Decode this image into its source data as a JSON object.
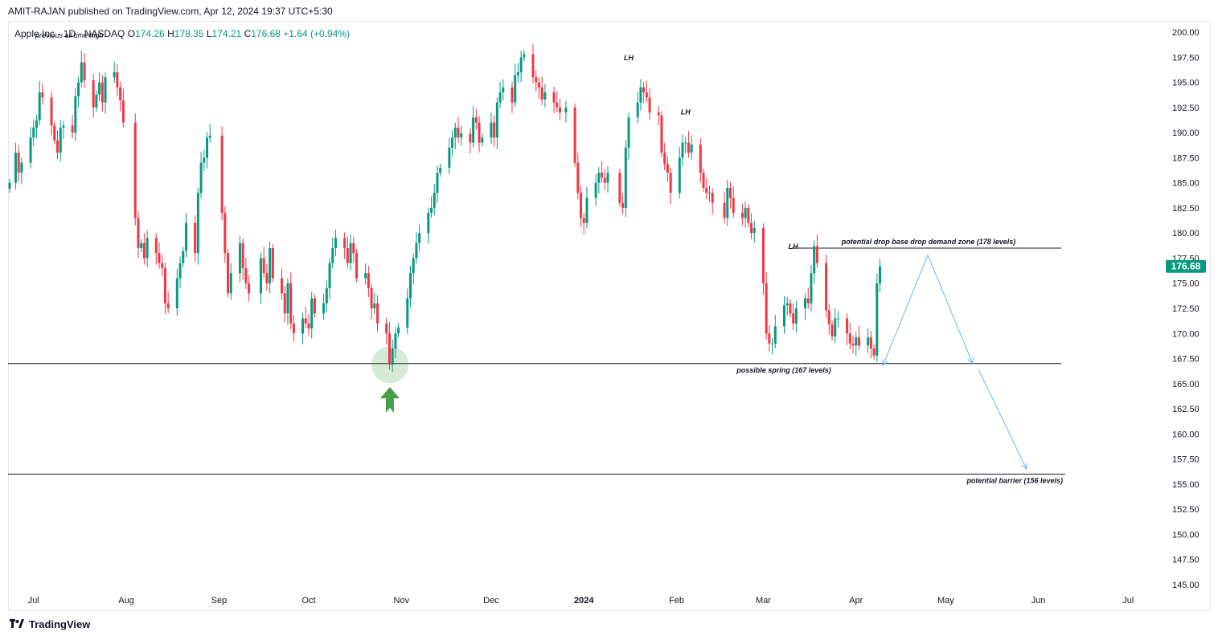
{
  "publisher": "AMIT-RAJAN published on TradingView.com, Apr 12, 2024 19:37 UTC+5:30",
  "legend": {
    "symbol": "Apple Inc · 1D · NASDAQ",
    "o_label": "O",
    "o": "174.26",
    "h_label": "H",
    "h": "178.35",
    "l_label": "L",
    "l": "174.21",
    "c_label": "C",
    "c": "176.68",
    "change": "+1.64 (+0.94%)",
    "overlay_note": "previous all time high"
  },
  "footer": {
    "brand": "TradingView"
  },
  "colors": {
    "up": "#089981",
    "down": "#f23645",
    "accent": "#089981",
    "arrow": "#64b5f6",
    "pointer": "#43a047"
  },
  "chart_data": {
    "type": "candlestick",
    "title": "Apple Inc · 1D · NASDAQ",
    "ylim": [
      143.5,
      201.5
    ],
    "y_ticks": [
      "200.00",
      "197.50",
      "195.00",
      "192.50",
      "190.00",
      "187.50",
      "185.00",
      "182.50",
      "180.00",
      "177.50",
      "175.00",
      "172.50",
      "170.00",
      "167.50",
      "165.00",
      "162.50",
      "160.00",
      "157.50",
      "155.00",
      "152.50",
      "150.00",
      "147.50",
      "145.00"
    ],
    "x_ticks": [
      {
        "label": "Jul",
        "day": 8
      },
      {
        "label": "Aug",
        "day": 39
      },
      {
        "label": "Sep",
        "day": 70
      },
      {
        "label": "Oct",
        "day": 100
      },
      {
        "label": "Nov",
        "day": 131
      },
      {
        "label": "Dec",
        "day": 161
      },
      {
        "label": "2024",
        "day": 192
      },
      {
        "label": "Feb",
        "day": 223
      },
      {
        "label": "Mar",
        "day": 252
      },
      {
        "label": "Apr",
        "day": 283
      },
      {
        "label": "May",
        "day": 313
      },
      {
        "label": "Jun",
        "day": 344
      },
      {
        "label": "Jul",
        "day": 374
      }
    ],
    "start_day": 0,
    "closes": [
      {
        "day": 0,
        "c": 185.0
      },
      {
        "day": 2,
        "c": 188.0
      },
      {
        "day": 3,
        "c": 186.0
      },
      {
        "day": 4,
        "c": 187.0
      },
      {
        "day": 7,
        "c": 189.5
      },
      {
        "day": 8,
        "c": 190.5
      },
      {
        "day": 9,
        "c": 191.2
      },
      {
        "day": 10,
        "c": 194.0
      },
      {
        "day": 11,
        "c": 193.5
      },
      {
        "day": 14,
        "c": 190.7
      },
      {
        "day": 15,
        "c": 189.2
      },
      {
        "day": 16,
        "c": 188.0
      },
      {
        "day": 17,
        "c": 190.5
      },
      {
        "day": 18,
        "c": 190.7
      },
      {
        "day": 21,
        "c": 190.0
      },
      {
        "day": 22,
        "c": 193.6
      },
      {
        "day": 23,
        "c": 195.0
      },
      {
        "day": 24,
        "c": 197.0
      },
      {
        "day": 25,
        "c": 195.2
      },
      {
        "day": 28,
        "c": 192.5
      },
      {
        "day": 29,
        "c": 193.8
      },
      {
        "day": 30,
        "c": 195.0
      },
      {
        "day": 31,
        "c": 193.0
      },
      {
        "day": 32,
        "c": 195.5
      },
      {
        "day": 35,
        "c": 196.0
      },
      {
        "day": 36,
        "c": 194.5
      },
      {
        "day": 37,
        "c": 193.2
      },
      {
        "day": 38,
        "c": 191.0
      },
      {
        "day": 42,
        "c": 181.5
      },
      {
        "day": 43,
        "c": 178.5
      },
      {
        "day": 44,
        "c": 179.0
      },
      {
        "day": 45,
        "c": 177.5
      },
      {
        "day": 46,
        "c": 179.5
      },
      {
        "day": 49,
        "c": 178.0
      },
      {
        "day": 50,
        "c": 177.0
      },
      {
        "day": 51,
        "c": 176.5
      },
      {
        "day": 52,
        "c": 173.0
      },
      {
        "day": 53,
        "c": 172.5
      },
      {
        "day": 56,
        "c": 175.5
      },
      {
        "day": 57,
        "c": 177.0
      },
      {
        "day": 58,
        "c": 178.2
      },
      {
        "day": 59,
        "c": 181.0
      },
      {
        "day": 62,
        "c": 178.0
      },
      {
        "day": 63,
        "c": 184.0
      },
      {
        "day": 64,
        "c": 187.0
      },
      {
        "day": 65,
        "c": 187.5
      },
      {
        "day": 66,
        "c": 189.5
      },
      {
        "day": 67,
        "c": 189.7
      },
      {
        "day": 71,
        "c": 182.0
      },
      {
        "day": 72,
        "c": 178.0
      },
      {
        "day": 73,
        "c": 174.0
      },
      {
        "day": 74,
        "c": 176.0
      },
      {
        "day": 77,
        "c": 179.0
      },
      {
        "day": 78,
        "c": 176.5
      },
      {
        "day": 79,
        "c": 175.0
      },
      {
        "day": 80,
        "c": 174.0
      },
      {
        "day": 84,
        "c": 177.5
      },
      {
        "day": 85,
        "c": 176.0
      },
      {
        "day": 86,
        "c": 175.0
      },
      {
        "day": 87,
        "c": 178.5
      },
      {
        "day": 88,
        "c": 175.5
      },
      {
        "day": 91,
        "c": 174.0
      },
      {
        "day": 92,
        "c": 172.0
      },
      {
        "day": 93,
        "c": 175.0
      },
      {
        "day": 94,
        "c": 171.0
      },
      {
        "day": 95,
        "c": 170.0
      },
      {
        "day": 98,
        "c": 171.5
      },
      {
        "day": 99,
        "c": 171.0
      },
      {
        "day": 100,
        "c": 170.5
      },
      {
        "day": 101,
        "c": 173.5
      },
      {
        "day": 102,
        "c": 172.0
      },
      {
        "day": 105,
        "c": 173.0
      },
      {
        "day": 106,
        "c": 174.5
      },
      {
        "day": 107,
        "c": 177.0
      },
      {
        "day": 108,
        "c": 178.5
      },
      {
        "day": 109,
        "c": 179.5
      },
      {
        "day": 112,
        "c": 178.5
      },
      {
        "day": 113,
        "c": 177.0
      },
      {
        "day": 114,
        "c": 179.0
      },
      {
        "day": 115,
        "c": 178.0
      },
      {
        "day": 116,
        "c": 175.5
      },
      {
        "day": 119,
        "c": 176.0
      },
      {
        "day": 120,
        "c": 174.5
      },
      {
        "day": 121,
        "c": 172.5
      },
      {
        "day": 122,
        "c": 173.0
      },
      {
        "day": 123,
        "c": 171.0
      },
      {
        "day": 126,
        "c": 170.0
      },
      {
        "day": 127,
        "c": 166.9
      },
      {
        "day": 128,
        "c": 168.5
      },
      {
        "day": 129,
        "c": 170.0
      },
      {
        "day": 130,
        "c": 170.6
      },
      {
        "day": 133,
        "c": 173.5
      },
      {
        "day": 134,
        "c": 176.0
      },
      {
        "day": 135,
        "c": 177.5
      },
      {
        "day": 136,
        "c": 179.0
      },
      {
        "day": 137,
        "c": 180.0
      },
      {
        "day": 140,
        "c": 182.0
      },
      {
        "day": 141,
        "c": 182.5
      },
      {
        "day": 142,
        "c": 184.0
      },
      {
        "day": 143,
        "c": 186.0
      },
      {
        "day": 144,
        "c": 186.5
      },
      {
        "day": 147,
        "c": 188.5
      },
      {
        "day": 148,
        "c": 189.5
      },
      {
        "day": 149,
        "c": 190.5
      },
      {
        "day": 150,
        "c": 189.5
      },
      {
        "day": 151,
        "c": 189.9
      },
      {
        "day": 154,
        "c": 189.0
      },
      {
        "day": 155,
        "c": 191.5
      },
      {
        "day": 156,
        "c": 191.0
      },
      {
        "day": 157,
        "c": 189.0
      },
      {
        "day": 158,
        "c": 189.5
      },
      {
        "day": 161,
        "c": 191.0
      },
      {
        "day": 162,
        "c": 189.5
      },
      {
        "day": 163,
        "c": 193.0
      },
      {
        "day": 164,
        "c": 194.0
      },
      {
        "day": 165,
        "c": 194.5
      },
      {
        "day": 168,
        "c": 193.0
      },
      {
        "day": 169,
        "c": 195.7
      },
      {
        "day": 170,
        "c": 196.0
      },
      {
        "day": 171,
        "c": 197.5
      },
      {
        "day": 172,
        "c": 197.8
      },
      {
        "day": 175,
        "c": 195.5
      },
      {
        "day": 176,
        "c": 195.0
      },
      {
        "day": 177,
        "c": 194.5
      },
      {
        "day": 178,
        "c": 193.3
      },
      {
        "day": 179,
        "c": 194.0
      },
      {
        "day": 182,
        "c": 193.0
      },
      {
        "day": 183,
        "c": 192.5
      },
      {
        "day": 184,
        "c": 192.0
      },
      {
        "day": 186,
        "c": 192.5
      },
      {
        "day": 189,
        "c": 187.0
      },
      {
        "day": 190,
        "c": 184.0
      },
      {
        "day": 191,
        "c": 181.5
      },
      {
        "day": 192,
        "c": 181.0
      },
      {
        "day": 193,
        "c": 183.5
      },
      {
        "day": 196,
        "c": 185.0
      },
      {
        "day": 197,
        "c": 186.0
      },
      {
        "day": 198,
        "c": 185.5
      },
      {
        "day": 199,
        "c": 185.0
      },
      {
        "day": 200,
        "c": 186.0
      },
      {
        "day": 204,
        "c": 183.0
      },
      {
        "day": 205,
        "c": 182.5
      },
      {
        "day": 206,
        "c": 188.5
      },
      {
        "day": 207,
        "c": 191.5
      },
      {
        "day": 210,
        "c": 193.0
      },
      {
        "day": 211,
        "c": 194.5
      },
      {
        "day": 212,
        "c": 194.0
      },
      {
        "day": 213,
        "c": 193.5
      },
      {
        "day": 214,
        "c": 192.0
      },
      {
        "day": 217,
        "c": 191.7
      },
      {
        "day": 218,
        "c": 188.0
      },
      {
        "day": 219,
        "c": 186.9
      },
      {
        "day": 220,
        "c": 186.0
      },
      {
        "day": 221,
        "c": 184.0
      },
      {
        "day": 224,
        "c": 187.5
      },
      {
        "day": 225,
        "c": 189.0
      },
      {
        "day": 226,
        "c": 189.0
      },
      {
        "day": 227,
        "c": 188.0
      },
      {
        "day": 228,
        "c": 188.8
      },
      {
        "day": 231,
        "c": 186.0
      },
      {
        "day": 232,
        "c": 184.5
      },
      {
        "day": 233,
        "c": 184.0
      },
      {
        "day": 234,
        "c": 184.0
      },
      {
        "day": 235,
        "c": 183.0
      },
      {
        "day": 239,
        "c": 181.5
      },
      {
        "day": 240,
        "c": 184.5
      },
      {
        "day": 241,
        "c": 183.5
      },
      {
        "day": 242,
        "c": 182.0
      },
      {
        "day": 245,
        "c": 181.5
      },
      {
        "day": 246,
        "c": 182.5
      },
      {
        "day": 247,
        "c": 181.0
      },
      {
        "day": 248,
        "c": 180.0
      },
      {
        "day": 249,
        "c": 180.5
      },
      {
        "day": 252,
        "c": 175.0
      },
      {
        "day": 253,
        "c": 170.0
      },
      {
        "day": 254,
        "c": 169.0
      },
      {
        "day": 255,
        "c": 169.0
      },
      {
        "day": 256,
        "c": 170.7
      },
      {
        "day": 259,
        "c": 172.8
      },
      {
        "day": 260,
        "c": 173.0
      },
      {
        "day": 261,
        "c": 172.0
      },
      {
        "day": 262,
        "c": 171.0
      },
      {
        "day": 263,
        "c": 172.5
      },
      {
        "day": 266,
        "c": 173.5
      },
      {
        "day": 267,
        "c": 173.0
      },
      {
        "day": 268,
        "c": 176.0
      },
      {
        "day": 269,
        "c": 178.7
      },
      {
        "day": 270,
        "c": 177.0
      },
      {
        "day": 273,
        "c": 172.3
      },
      {
        "day": 274,
        "c": 170.9
      },
      {
        "day": 275,
        "c": 169.7
      },
      {
        "day": 276,
        "c": 171.5
      },
      {
        "day": 277,
        "c": 171.5
      },
      {
        "day": 280,
        "c": 170.0
      },
      {
        "day": 281,
        "c": 169.0
      },
      {
        "day": 282,
        "c": 168.8
      },
      {
        "day": 283,
        "c": 169.6
      },
      {
        "day": 284,
        "c": 168.8
      },
      {
        "day": 287,
        "c": 169.6
      },
      {
        "day": 288,
        "c": 168.5
      },
      {
        "day": 289,
        "c": 167.8
      },
      {
        "day": 290,
        "c": 175.0
      },
      {
        "day": 291,
        "c": 176.68
      }
    ],
    "levels": [
      {
        "name": "potential drop base drop demand zone (178 levels)",
        "value": 178.5,
        "label": "potential drop base drop demand zone (178 levels)"
      },
      {
        "name": "possible spring (167 levels)",
        "value": 167.0,
        "label": "possible spring (167 levels)"
      },
      {
        "name": "potential barrier (156 levels)",
        "value": 156.0,
        "label": "potential barrier (156 levels)"
      }
    ],
    "annotations": [
      {
        "text": "LH",
        "day": 207,
        "value": 197.2
      },
      {
        "text": "LH",
        "day": 226,
        "value": 191.8
      },
      {
        "text": "LH",
        "day": 262,
        "value": 178.4
      }
    ],
    "projection": [
      {
        "day": 292,
        "value": 166.8
      },
      {
        "day": 307,
        "value": 177.8
      },
      {
        "day": 322,
        "value": 167.0
      }
    ],
    "projection2": [
      {
        "day": 324,
        "value": 166.4
      },
      {
        "day": 340,
        "value": 156.5
      }
    ],
    "spring_marker": {
      "day": 127,
      "value": 166.8
    },
    "last_price": "176.68"
  }
}
